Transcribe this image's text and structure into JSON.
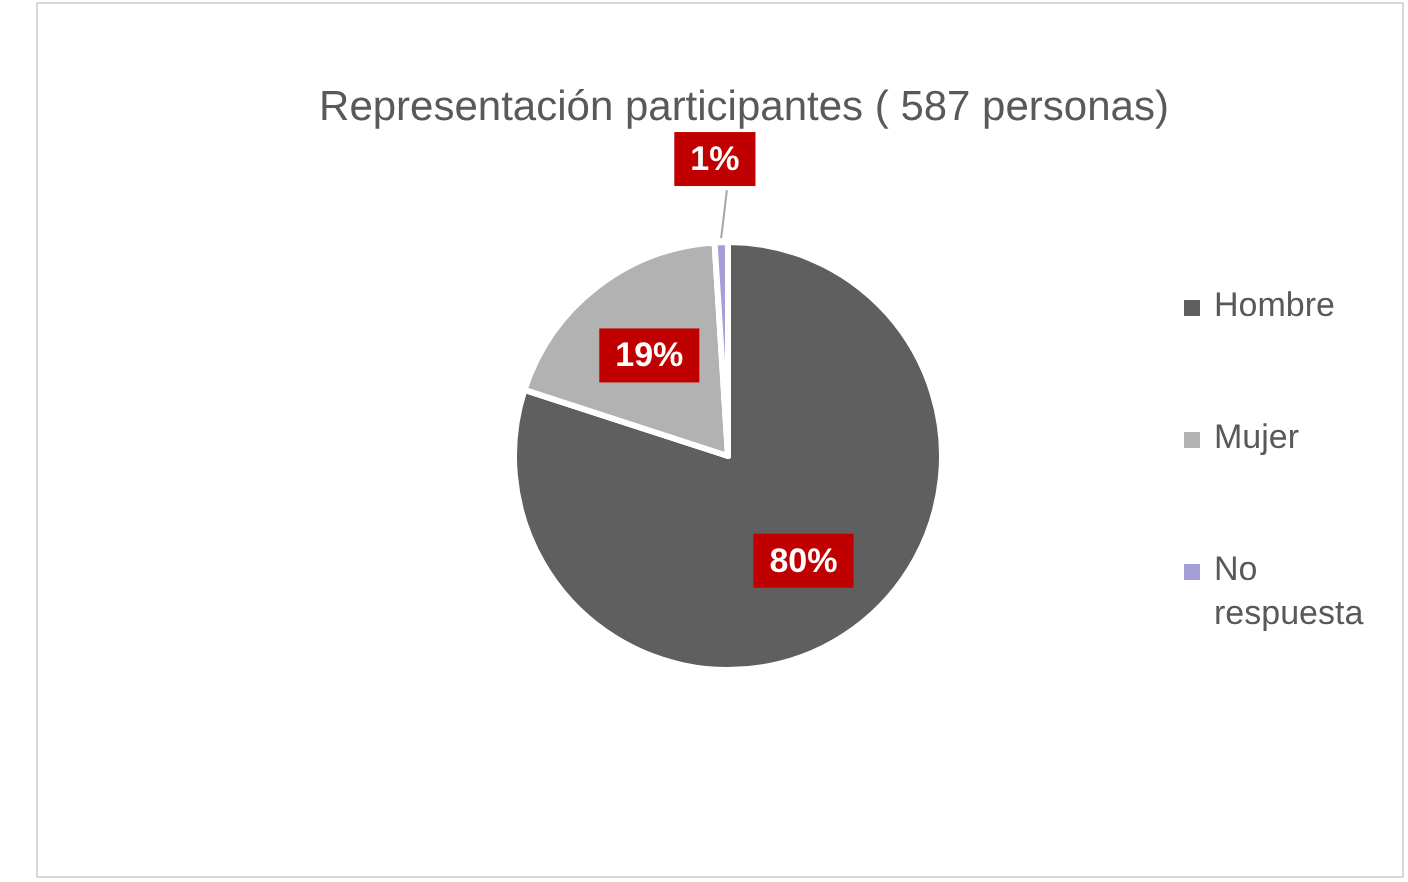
{
  "chart_data": {
    "type": "pie",
    "title": "Representación participantes ( 587 personas)",
    "categories": [
      "Hombre",
      "Mujer",
      "No respuesta"
    ],
    "values": [
      80,
      19,
      1
    ],
    "colors": [
      "#5f5f5f",
      "#b2b2b2",
      "#a49fd6"
    ],
    "value_labels": [
      "80%",
      "19%",
      "1%"
    ],
    "legend": "right"
  }
}
